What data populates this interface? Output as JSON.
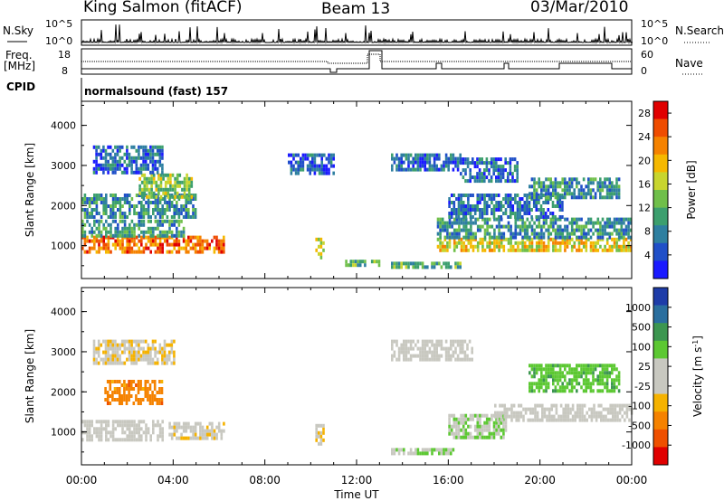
{
  "header": {
    "station": "King Salmon (fitACF)",
    "beam": "Beam 13",
    "date": "03/Mar/2010"
  },
  "top_panels": {
    "nsky_label": "N.Sky",
    "nsearch_label": "N.Search",
    "noise_ticks_left": [
      "10^5",
      "10^0"
    ],
    "noise_ticks_right": [
      "10^5",
      "10^0"
    ],
    "freq_label": "Freq.",
    "freq_unit": "[MHz]",
    "freq_ticks": [
      "18",
      "8"
    ],
    "nave_label": "Nave",
    "nave_ticks": [
      "60",
      "0"
    ],
    "cpid_label": "CPID",
    "cpid_value": "normalsound (fast) 157"
  },
  "chart_data": [
    {
      "type": "heatmap",
      "title": "",
      "ylabel": "Slant Range [km]",
      "xlabel": "",
      "x_ticks": [
        "00:00",
        "04:00",
        "08:00",
        "12:00",
        "16:00",
        "20:00",
        "00:00"
      ],
      "y_ticks": [
        "1000",
        "2000",
        "3000",
        "4000"
      ],
      "ylim": [
        180,
        4600
      ],
      "xlim_hours": [
        0,
        24
      ],
      "colorbar": {
        "label": "Power [dB]",
        "ticks": [
          "4",
          "8",
          "12",
          "16",
          "20",
          "24",
          "28"
        ],
        "range": [
          0,
          30
        ],
        "colors": [
          "#1a1aff",
          "#1f4fc8",
          "#2e7fa0",
          "#3c9f6e",
          "#6fbf4a",
          "#c8d52e",
          "#f5b800",
          "#f58200",
          "#ef4c00",
          "#e00000"
        ]
      },
      "regions": [
        {
          "x0": 0.0,
          "x1": 6.2,
          "y0": 800,
          "y1": 1250,
          "level": 24
        },
        {
          "x0": 0.0,
          "x1": 4.5,
          "y0": 1250,
          "y1": 1650,
          "level": 10
        },
        {
          "x0": 0.0,
          "x1": 5.0,
          "y0": 1700,
          "y1": 2300,
          "level": 9
        },
        {
          "x0": 2.5,
          "x1": 4.8,
          "y0": 2200,
          "y1": 2800,
          "level": 14
        },
        {
          "x0": 0.5,
          "x1": 3.5,
          "y0": 2800,
          "y1": 3500,
          "level": 6
        },
        {
          "x0": 9.0,
          "x1": 11.0,
          "y0": 2800,
          "y1": 3300,
          "level": 5
        },
        {
          "x0": 10.2,
          "x1": 10.6,
          "y0": 700,
          "y1": 1200,
          "level": 16
        },
        {
          "x0": 11.5,
          "x1": 13.0,
          "y0": 500,
          "y1": 650,
          "level": 12
        },
        {
          "x0": 13.5,
          "x1": 16.5,
          "y0": 430,
          "y1": 600,
          "level": 12
        },
        {
          "x0": 13.5,
          "x1": 16.5,
          "y0": 2900,
          "y1": 3300,
          "level": 6
        },
        {
          "x0": 15.5,
          "x1": 24.0,
          "y0": 850,
          "y1": 1200,
          "level": 18
        },
        {
          "x0": 15.5,
          "x1": 24.0,
          "y0": 1200,
          "y1": 1700,
          "level": 9
        },
        {
          "x0": 16.0,
          "x1": 21.0,
          "y0": 1700,
          "y1": 2300,
          "level": 7
        },
        {
          "x0": 19.5,
          "x1": 23.5,
          "y0": 2200,
          "y1": 2700,
          "level": 9
        },
        {
          "x0": 16.5,
          "x1": 19.0,
          "y0": 2600,
          "y1": 3200,
          "level": 6
        }
      ]
    },
    {
      "type": "heatmap",
      "title": "",
      "ylabel": "Slant Range [km]",
      "xlabel": "Time UT",
      "x_ticks": [
        "00:00",
        "04:00",
        "08:00",
        "12:00",
        "16:00",
        "20:00",
        "00:00"
      ],
      "y_ticks": [
        "1000",
        "2000",
        "3000",
        "4000"
      ],
      "ylim": [
        180,
        4600
      ],
      "xlim_hours": [
        0,
        24
      ],
      "colorbar": {
        "label": "Velocity [m s",
        "label_sup": "-1",
        "label_end": "]",
        "ticks": [
          "1000",
          "500",
          "100",
          "25",
          "-25",
          "-100",
          "-500",
          "-1000"
        ],
        "range": [
          -1200,
          1200
        ],
        "colors": [
          "#1e3ca8",
          "#2a6e9e",
          "#3c9650",
          "#5cc832",
          "#c8c8c0",
          "#c8c8c0",
          "#f5b200",
          "#f58200",
          "#ef5000",
          "#e00000"
        ]
      },
      "regions": [
        {
          "x0": 0.0,
          "x1": 3.5,
          "y0": 800,
          "y1": 1300,
          "level": 0
        },
        {
          "x0": 3.8,
          "x1": 6.2,
          "y0": 850,
          "y1": 1250,
          "level": -150
        },
        {
          "x0": 1.0,
          "x1": 3.5,
          "y0": 1700,
          "y1": 2300,
          "level": -600
        },
        {
          "x0": 0.5,
          "x1": 4.0,
          "y0": 2700,
          "y1": 3300,
          "level": -200
        },
        {
          "x0": 10.2,
          "x1": 10.6,
          "y0": 700,
          "y1": 1200,
          "level": -200
        },
        {
          "x0": 13.5,
          "x1": 16.3,
          "y0": 430,
          "y1": 600,
          "level": 200
        },
        {
          "x0": 16.0,
          "x1": 18.5,
          "y0": 850,
          "y1": 1450,
          "level": 200
        },
        {
          "x0": 18.0,
          "x1": 24.0,
          "y0": 1250,
          "y1": 1700,
          "level": 0
        },
        {
          "x0": 19.5,
          "x1": 23.5,
          "y0": 2000,
          "y1": 2700,
          "level": 400
        },
        {
          "x0": 13.5,
          "x1": 17.0,
          "y0": 2800,
          "y1": 3300,
          "level": 0
        }
      ]
    }
  ]
}
